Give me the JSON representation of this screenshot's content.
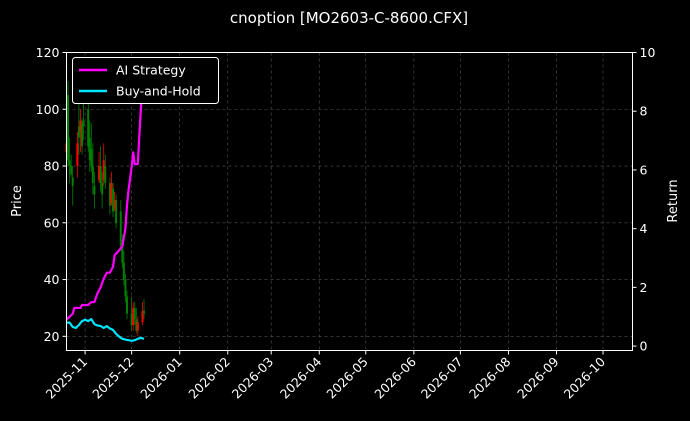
{
  "chart_data": {
    "type": "line",
    "title": "cnoption [MO2603-C-8600.CFX]",
    "ylabel_left": "Price",
    "ylabel_right": "Return",
    "ylim_left": [
      15,
      120
    ],
    "ylim_right": [
      -0.15,
      10
    ],
    "yticks_left": [
      20,
      40,
      60,
      80,
      100,
      120
    ],
    "yticks_right": [
      0,
      2,
      4,
      6,
      8,
      10
    ],
    "xlim": [
      "2025-10-20",
      "2026-10-20"
    ],
    "xticks": [
      "2025-11",
      "2025-12",
      "2026-01",
      "2026-02",
      "2026-03",
      "2026-04",
      "2026-05",
      "2026-06",
      "2026-07",
      "2026-08",
      "2026-09",
      "2026-10"
    ],
    "grid": true,
    "legend_position": "top-left",
    "colors": {
      "up": "#ff0000",
      "down": "#008000",
      "strategy": "#ff00ff",
      "buyhold": "#00e5ff"
    },
    "candles": [
      {
        "date": "2025-10-20",
        "open": 85,
        "high": 95,
        "low": 78,
        "close": 88
      },
      {
        "date": "2025-10-21",
        "open": 105,
        "high": 110,
        "low": 80,
        "close": 82
      },
      {
        "date": "2025-10-22",
        "open": 82,
        "high": 90,
        "low": 74,
        "close": 80
      },
      {
        "date": "2025-10-23",
        "open": 80,
        "high": 84,
        "low": 76,
        "close": 77
      },
      {
        "date": "2025-10-24",
        "open": 76,
        "high": 80,
        "low": 66,
        "close": 73
      },
      {
        "date": "2025-10-27",
        "open": 80,
        "high": 92,
        "low": 76,
        "close": 88
      },
      {
        "date": "2025-10-28",
        "open": 94,
        "high": 104,
        "low": 84,
        "close": 90
      },
      {
        "date": "2025-10-29",
        "open": 92,
        "high": 100,
        "low": 85,
        "close": 96
      },
      {
        "date": "2025-10-30",
        "open": 95,
        "high": 97,
        "low": 84,
        "close": 87
      },
      {
        "date": "2025-10-31",
        "open": 96,
        "high": 103,
        "low": 89,
        "close": 94
      },
      {
        "date": "2025-11-03",
        "open": 100,
        "high": 104,
        "low": 85,
        "close": 87
      },
      {
        "date": "2025-11-04",
        "open": 90,
        "high": 96,
        "low": 78,
        "close": 82
      },
      {
        "date": "2025-11-05",
        "open": 86,
        "high": 95,
        "low": 78,
        "close": 80
      },
      {
        "date": "2025-11-06",
        "open": 80,
        "high": 88,
        "low": 70,
        "close": 74
      },
      {
        "date": "2025-11-07",
        "open": 73,
        "high": 78,
        "low": 65,
        "close": 70
      },
      {
        "date": "2025-11-10",
        "open": 75,
        "high": 85,
        "low": 74,
        "close": 80
      },
      {
        "date": "2025-11-11",
        "open": 80,
        "high": 87,
        "low": 71,
        "close": 74
      },
      {
        "date": "2025-11-12",
        "open": 74,
        "high": 78,
        "low": 65,
        "close": 70
      },
      {
        "date": "2025-11-13",
        "open": 75,
        "high": 88,
        "low": 73,
        "close": 82
      },
      {
        "date": "2025-11-14",
        "open": 80,
        "high": 84,
        "low": 72,
        "close": 74
      },
      {
        "date": "2025-11-17",
        "open": 74,
        "high": 76,
        "low": 63,
        "close": 66
      },
      {
        "date": "2025-11-18",
        "open": 67,
        "high": 78,
        "low": 66,
        "close": 74
      },
      {
        "date": "2025-11-19",
        "open": 72,
        "high": 74,
        "low": 62,
        "close": 64
      },
      {
        "date": "2025-11-20",
        "open": 65,
        "high": 71,
        "low": 64,
        "close": 68
      },
      {
        "date": "2025-11-21",
        "open": 68,
        "high": 70,
        "low": 58,
        "close": 60
      },
      {
        "date": "2025-11-24",
        "open": 64,
        "high": 68,
        "low": 50,
        "close": 52
      },
      {
        "date": "2025-11-25",
        "open": 52,
        "high": 56,
        "low": 44,
        "close": 46
      },
      {
        "date": "2025-11-26",
        "open": 46,
        "high": 50,
        "low": 38,
        "close": 40
      },
      {
        "date": "2025-11-27",
        "open": 40,
        "high": 42,
        "low": 32,
        "close": 34
      },
      {
        "date": "2025-11-28",
        "open": 34,
        "high": 36,
        "low": 26,
        "close": 28
      },
      {
        "date": "2025-12-01",
        "open": 28,
        "high": 34,
        "low": 22,
        "close": 24
      },
      {
        "date": "2025-12-02",
        "open": 24,
        "high": 32,
        "low": 22,
        "close": 30
      },
      {
        "date": "2025-12-03",
        "open": 30,
        "high": 32,
        "low": 24,
        "close": 26
      },
      {
        "date": "2025-12-04",
        "open": 26,
        "high": 30,
        "low": 21,
        "close": 22
      },
      {
        "date": "2025-12-05",
        "open": 22,
        "high": 27,
        "low": 20,
        "close": 25
      },
      {
        "date": "2025-12-08",
        "open": 25,
        "high": 32,
        "low": 24,
        "close": 29
      },
      {
        "date": "2025-12-09",
        "open": 29,
        "high": 33,
        "low": 26,
        "close": 28
      }
    ],
    "series": [
      {
        "name": "AI Strategy",
        "points": [
          [
            "2025-10-20",
            0.9
          ],
          [
            "2025-10-22",
            1.0
          ],
          [
            "2025-10-24",
            1.1
          ],
          [
            "2025-10-25",
            1.3
          ],
          [
            "2025-10-29",
            1.3
          ],
          [
            "2025-10-30",
            1.4
          ],
          [
            "2025-11-03",
            1.4
          ],
          [
            "2025-11-05",
            1.5
          ],
          [
            "2025-11-07",
            1.5
          ],
          [
            "2025-11-09",
            1.8
          ],
          [
            "2025-11-11",
            2.0
          ],
          [
            "2025-11-13",
            2.3
          ],
          [
            "2025-11-15",
            2.5
          ],
          [
            "2025-11-17",
            2.5
          ],
          [
            "2025-11-19",
            2.7
          ],
          [
            "2025-11-20",
            3.1
          ],
          [
            "2025-11-22",
            3.2
          ],
          [
            "2025-11-25",
            3.4
          ],
          [
            "2025-11-27",
            4.0
          ],
          [
            "2025-11-28",
            4.8
          ],
          [
            "2025-11-29",
            5.3
          ],
          [
            "2025-12-01",
            6.1
          ],
          [
            "2025-12-02",
            6.6
          ],
          [
            "2025-12-03",
            6.2
          ],
          [
            "2025-12-05",
            6.2
          ],
          [
            "2025-12-06",
            7.2
          ],
          [
            "2025-12-07",
            8.1
          ],
          [
            "2025-12-08",
            9.0
          ],
          [
            "2025-12-09",
            9.6
          ]
        ]
      },
      {
        "name": "Buy-and-Hold",
        "points": [
          [
            "2025-10-20",
            0.8
          ],
          [
            "2025-10-22",
            0.8
          ],
          [
            "2025-10-24",
            0.65
          ],
          [
            "2025-10-26",
            0.62
          ],
          [
            "2025-10-28",
            0.72
          ],
          [
            "2025-10-30",
            0.85
          ],
          [
            "2025-11-01",
            0.9
          ],
          [
            "2025-11-03",
            0.85
          ],
          [
            "2025-11-05",
            0.92
          ],
          [
            "2025-11-07",
            0.75
          ],
          [
            "2025-11-09",
            0.7
          ],
          [
            "2025-11-11",
            0.68
          ],
          [
            "2025-11-13",
            0.62
          ],
          [
            "2025-11-15",
            0.68
          ],
          [
            "2025-11-17",
            0.6
          ],
          [
            "2025-11-19",
            0.55
          ],
          [
            "2025-11-21",
            0.42
          ],
          [
            "2025-11-23",
            0.32
          ],
          [
            "2025-11-25",
            0.25
          ],
          [
            "2025-11-27",
            0.22
          ],
          [
            "2025-11-29",
            0.2
          ],
          [
            "2025-12-01",
            0.18
          ],
          [
            "2025-12-03",
            0.2
          ],
          [
            "2025-12-05",
            0.25
          ],
          [
            "2025-12-07",
            0.28
          ],
          [
            "2025-12-09",
            0.25
          ]
        ]
      }
    ]
  }
}
